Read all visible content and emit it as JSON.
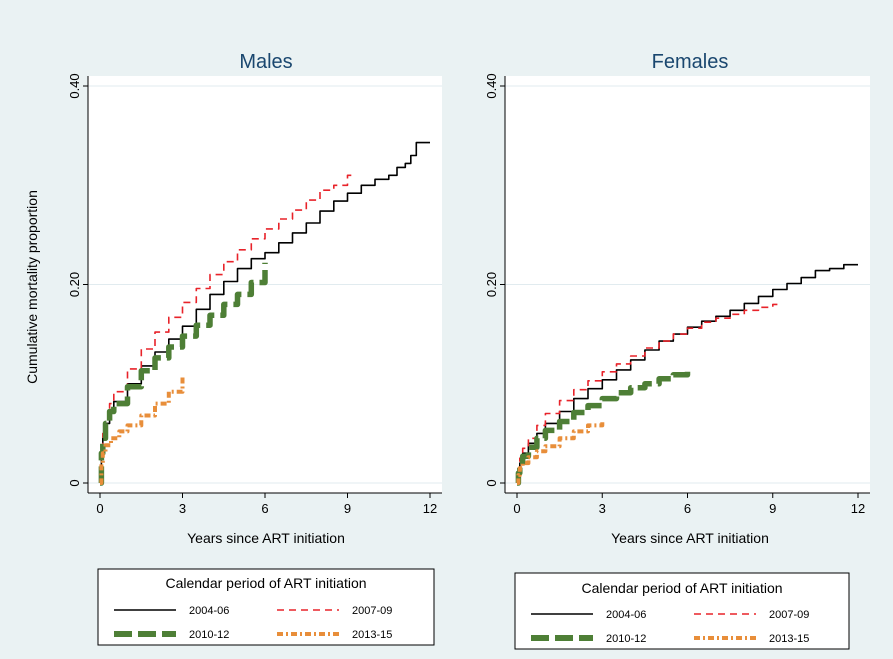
{
  "colors": {
    "background": "#eaf2f3",
    "plot_bg": "#ffffff",
    "title": "#1a476f",
    "grid": "#e1ebef",
    "series_2004_06": "#000000",
    "series_2007_09": "#e8232a",
    "series_2010_12": "#4e7f36",
    "series_2013_15": "#e88e3a"
  },
  "legend": {
    "title": "Calendar period of ART initiation",
    "placement": "bottom"
  },
  "chart_data": [
    {
      "type": "line",
      "title": "Males",
      "xlabel": "Years since ART initiation",
      "ylabel": "Cumulative mortality proportion",
      "xlim": [
        0,
        12
      ],
      "ylim": [
        0,
        0.4
      ],
      "xticks": [
        "0",
        "3",
        "6",
        "9",
        "12"
      ],
      "yticks": [
        "0",
        "0.20",
        "0.40"
      ],
      "grid": true,
      "series": [
        {
          "name": "2004-06",
          "points": [
            [
              0,
              0
            ],
            [
              0.05,
              0.03
            ],
            [
              0.1,
              0.045
            ],
            [
              0.2,
              0.06
            ],
            [
              0.35,
              0.072
            ],
            [
              0.5,
              0.082
            ],
            [
              1,
              0.1
            ],
            [
              1.5,
              0.118
            ],
            [
              2,
              0.132
            ],
            [
              2.5,
              0.145
            ],
            [
              3,
              0.158
            ],
            [
              3.5,
              0.175
            ],
            [
              4,
              0.19
            ],
            [
              4.5,
              0.203
            ],
            [
              5,
              0.216
            ],
            [
              5.5,
              0.226
            ],
            [
              6,
              0.232
            ],
            [
              6.5,
              0.242
            ],
            [
              7,
              0.252
            ],
            [
              7.5,
              0.262
            ],
            [
              8,
              0.274
            ],
            [
              8.5,
              0.284
            ],
            [
              9,
              0.292
            ],
            [
              9.5,
              0.3
            ],
            [
              10,
              0.306
            ],
            [
              10.5,
              0.31
            ],
            [
              10.8,
              0.318
            ],
            [
              11.1,
              0.322
            ],
            [
              11.3,
              0.33
            ],
            [
              11.5,
              0.343
            ],
            [
              12,
              0.343
            ]
          ]
        },
        {
          "name": "2007-09",
          "points": [
            [
              0,
              0
            ],
            [
              0.05,
              0.035
            ],
            [
              0.1,
              0.05
            ],
            [
              0.2,
              0.065
            ],
            [
              0.35,
              0.08
            ],
            [
              0.5,
              0.092
            ],
            [
              1,
              0.115
            ],
            [
              1.5,
              0.135
            ],
            [
              2,
              0.152
            ],
            [
              2.5,
              0.167
            ],
            [
              3,
              0.182
            ],
            [
              3.5,
              0.196
            ],
            [
              4,
              0.21
            ],
            [
              4.5,
              0.223
            ],
            [
              5,
              0.235
            ],
            [
              5.5,
              0.246
            ],
            [
              6,
              0.256
            ],
            [
              6.5,
              0.266
            ],
            [
              7,
              0.275
            ],
            [
              7.5,
              0.285
            ],
            [
              8,
              0.295
            ],
            [
              8.5,
              0.3
            ],
            [
              9,
              0.31
            ],
            [
              9.2,
              0.31
            ]
          ]
        },
        {
          "name": "2010-12",
          "points": [
            [
              0,
              0
            ],
            [
              0.05,
              0.03
            ],
            [
              0.1,
              0.045
            ],
            [
              0.2,
              0.06
            ],
            [
              0.35,
              0.072
            ],
            [
              0.5,
              0.08
            ],
            [
              1,
              0.097
            ],
            [
              1.5,
              0.113
            ],
            [
              2,
              0.126
            ],
            [
              2.5,
              0.137
            ],
            [
              3,
              0.148
            ],
            [
              3.5,
              0.159
            ],
            [
              4,
              0.169
            ],
            [
              4.5,
              0.18
            ],
            [
              5,
              0.19
            ],
            [
              5.5,
              0.202
            ],
            [
              6,
              0.222
            ]
          ]
        },
        {
          "name": "2013-15",
          "points": [
            [
              0,
              0
            ],
            [
              0.05,
              0.02
            ],
            [
              0.1,
              0.03
            ],
            [
              0.2,
              0.038
            ],
            [
              0.4,
              0.045
            ],
            [
              0.7,
              0.052
            ],
            [
              1,
              0.058
            ],
            [
              1.5,
              0.068
            ],
            [
              2,
              0.08
            ],
            [
              2.5,
              0.092
            ],
            [
              3,
              0.108
            ]
          ]
        }
      ]
    },
    {
      "type": "line",
      "title": "Females",
      "xlabel": "Years since ART initiation",
      "ylabel": "",
      "xlim": [
        0,
        12
      ],
      "ylim": [
        0,
        0.4
      ],
      "xticks": [
        "0",
        "3",
        "6",
        "9",
        "12"
      ],
      "yticks": [
        "0",
        "0.20",
        "0.40"
      ],
      "grid": true,
      "series": [
        {
          "name": "2004-06",
          "points": [
            [
              0,
              0
            ],
            [
              0.05,
              0.01
            ],
            [
              0.1,
              0.02
            ],
            [
              0.2,
              0.03
            ],
            [
              0.4,
              0.04
            ],
            [
              0.7,
              0.05
            ],
            [
              1,
              0.06
            ],
            [
              1.5,
              0.072
            ],
            [
              2,
              0.085
            ],
            [
              2.5,
              0.095
            ],
            [
              3,
              0.104
            ],
            [
              3.5,
              0.114
            ],
            [
              4,
              0.124
            ],
            [
              4.5,
              0.134
            ],
            [
              5,
              0.143
            ],
            [
              5.5,
              0.15
            ],
            [
              6,
              0.157
            ],
            [
              6.5,
              0.163
            ],
            [
              7,
              0.168
            ],
            [
              7.5,
              0.174
            ],
            [
              8,
              0.181
            ],
            [
              8.5,
              0.188
            ],
            [
              9,
              0.195
            ],
            [
              9.5,
              0.201
            ],
            [
              10,
              0.207
            ],
            [
              10.5,
              0.214
            ],
            [
              11,
              0.216
            ],
            [
              11.5,
              0.22
            ],
            [
              12,
              0.22
            ]
          ]
        },
        {
          "name": "2007-09",
          "points": [
            [
              0,
              0
            ],
            [
              0.05,
              0.015
            ],
            [
              0.1,
              0.025
            ],
            [
              0.2,
              0.035
            ],
            [
              0.4,
              0.045
            ],
            [
              0.7,
              0.058
            ],
            [
              1,
              0.07
            ],
            [
              1.5,
              0.083
            ],
            [
              2,
              0.094
            ],
            [
              2.5,
              0.103
            ],
            [
              3,
              0.112
            ],
            [
              3.5,
              0.12
            ],
            [
              4,
              0.128
            ],
            [
              4.5,
              0.136
            ],
            [
              5,
              0.143
            ],
            [
              5.5,
              0.15
            ],
            [
              6,
              0.156
            ],
            [
              6.5,
              0.162
            ],
            [
              7,
              0.166
            ],
            [
              7.5,
              0.17
            ],
            [
              8,
              0.174
            ],
            [
              8.5,
              0.177
            ],
            [
              9,
              0.18
            ],
            [
              9.2,
              0.18
            ]
          ]
        },
        {
          "name": "2010-12",
          "points": [
            [
              0,
              0
            ],
            [
              0.05,
              0.01
            ],
            [
              0.1,
              0.018
            ],
            [
              0.2,
              0.027
            ],
            [
              0.4,
              0.036
            ],
            [
              0.7,
              0.045
            ],
            [
              1,
              0.053
            ],
            [
              1.5,
              0.062
            ],
            [
              2,
              0.071
            ],
            [
              2.5,
              0.078
            ],
            [
              3,
              0.085
            ],
            [
              3.5,
              0.091
            ],
            [
              4,
              0.096
            ],
            [
              4.5,
              0.1
            ],
            [
              5,
              0.105
            ],
            [
              5.5,
              0.109
            ],
            [
              6,
              0.112
            ]
          ]
        },
        {
          "name": "2013-15",
          "points": [
            [
              0,
              0
            ],
            [
              0.05,
              0.008
            ],
            [
              0.1,
              0.015
            ],
            [
              0.2,
              0.02
            ],
            [
              0.4,
              0.026
            ],
            [
              0.7,
              0.032
            ],
            [
              1,
              0.037
            ],
            [
              1.5,
              0.045
            ],
            [
              2,
              0.052
            ],
            [
              2.5,
              0.058
            ],
            [
              3,
              0.064
            ]
          ]
        }
      ]
    }
  ]
}
